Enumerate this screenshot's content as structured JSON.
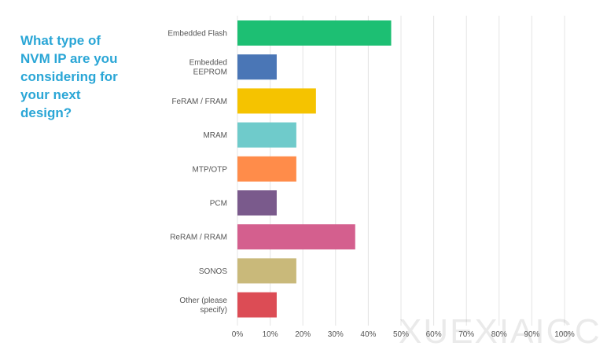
{
  "question": {
    "lines": [
      "What type of",
      "NVM IP are you",
      "considering for",
      "your next",
      "design?"
    ]
  },
  "watermark": "XUEXIAIGC",
  "colors": {
    "question_text": "#2aa6d6",
    "grid": "#e4e4e4",
    "axis_text": "#555555"
  },
  "chart_data": {
    "type": "bar",
    "orientation": "horizontal",
    "categories": [
      [
        "Embedded Flash"
      ],
      [
        "Embedded",
        "EEPROM"
      ],
      [
        "FeRAM / FRAM"
      ],
      [
        "MRAM"
      ],
      [
        "MTP/OTP"
      ],
      [
        "PCM"
      ],
      [
        "ReRAM / RRAM"
      ],
      [
        "SONOS"
      ],
      [
        "Other (please",
        "specify)"
      ]
    ],
    "values": [
      47,
      12,
      24,
      18,
      18,
      12,
      36,
      18,
      12
    ],
    "colors": [
      "#1dbf73",
      "#4a76b6",
      "#f5c300",
      "#6fcbcb",
      "#ff8c4a",
      "#7a5a8c",
      "#d45f8e",
      "#c9b97a",
      "#dc4c55"
    ],
    "xlim": [
      0,
      100
    ],
    "xticks": [
      "0%",
      "10%",
      "20%",
      "30%",
      "40%",
      "50%",
      "60%",
      "70%",
      "80%",
      "90%",
      "100%"
    ],
    "grid": true
  }
}
